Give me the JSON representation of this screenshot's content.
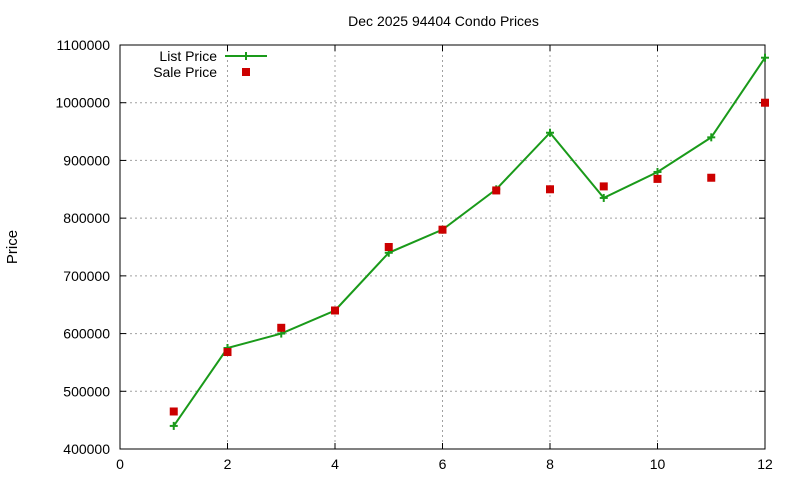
{
  "chart_data": {
    "type": "line",
    "title": "Dec 2025 94404 Condo Prices",
    "xlabel": "",
    "ylabel": "Price",
    "xlim": [
      0,
      12
    ],
    "ylim": [
      400000,
      1100000
    ],
    "xticks": [
      0,
      2,
      4,
      6,
      8,
      10,
      12
    ],
    "yticks": [
      400000,
      500000,
      600000,
      700000,
      800000,
      900000,
      1000000,
      1100000
    ],
    "grid": true,
    "legend_position": "top-left",
    "series": [
      {
        "name": "List Price",
        "style": "line-plus",
        "color": "#1a9a1a",
        "points": [
          [
            1,
            440000
          ],
          [
            2,
            575000
          ],
          [
            3,
            600000
          ],
          [
            4,
            640000
          ],
          [
            5,
            740000
          ],
          [
            6,
            780000
          ],
          [
            7,
            850000
          ],
          [
            8,
            948000
          ],
          [
            9,
            835000
          ],
          [
            10,
            880000
          ],
          [
            11,
            940000
          ],
          [
            12,
            1078000
          ]
        ]
      },
      {
        "name": "Sale Price",
        "style": "square-marker",
        "color": "#cc0000",
        "points": [
          [
            1,
            465000
          ],
          [
            2,
            568000
          ],
          [
            3,
            610000
          ],
          [
            4,
            640000
          ],
          [
            5,
            750000
          ],
          [
            6,
            780000
          ],
          [
            7,
            848000
          ],
          [
            8,
            850000
          ],
          [
            9,
            855000
          ],
          [
            10,
            868000
          ],
          [
            11,
            870000
          ],
          [
            12,
            1000000
          ]
        ]
      }
    ]
  }
}
